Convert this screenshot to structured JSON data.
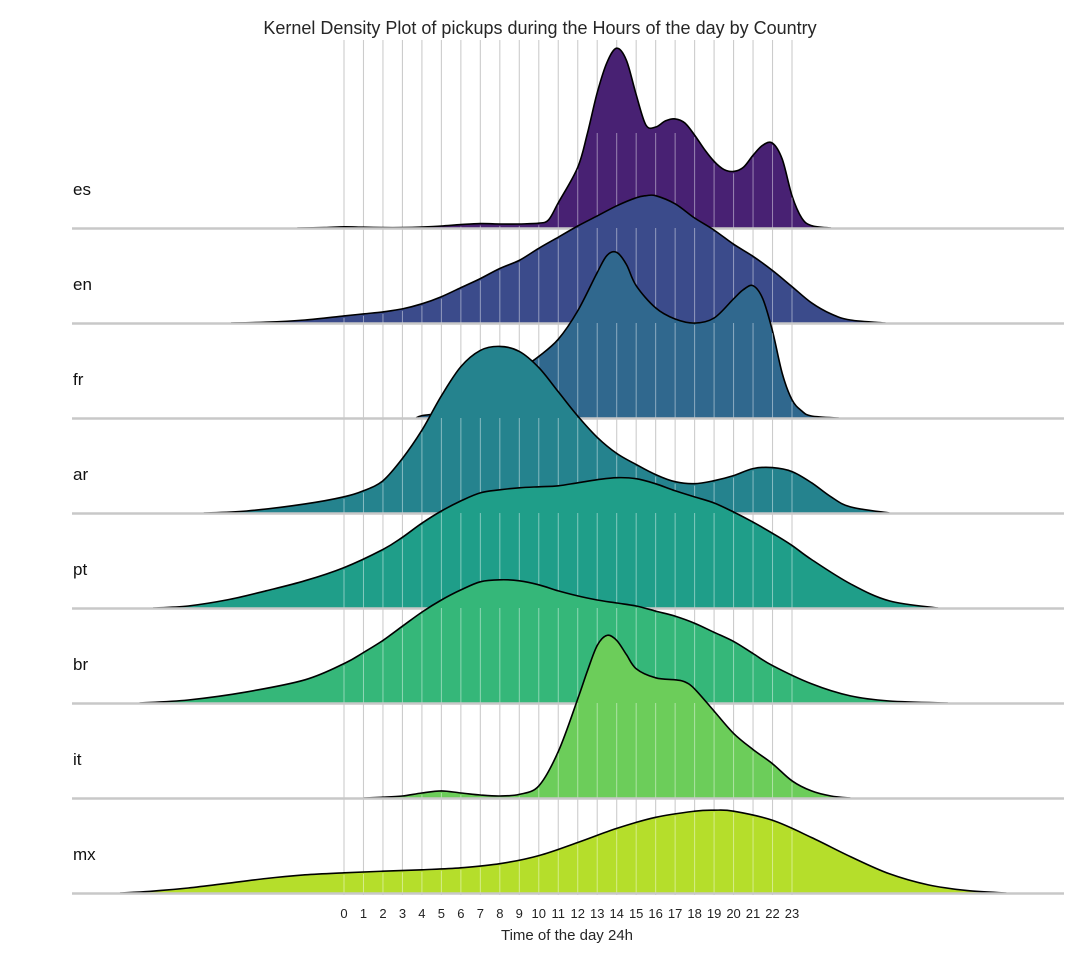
{
  "chart_data": {
    "type": "area",
    "title": "Kernel Density Plot of pickups during the Hours of the day by Country",
    "xlabel": "Time of the day 24h",
    "ylabel": "",
    "xlim": [
      -14,
      37
    ],
    "x_ticks": [
      "0",
      "1",
      "2",
      "3",
      "4",
      "5",
      "6",
      "7",
      "8",
      "9",
      "10",
      "11",
      "12",
      "13",
      "14",
      "15",
      "16",
      "17",
      "18",
      "19",
      "20",
      "21",
      "22",
      "23"
    ],
    "grid": "vertical lines at each hour",
    "legend": "none (row labels at left)",
    "series": [
      {
        "name": "es",
        "color": "#482173",
        "points": [
          [
            -2.4,
            0
          ],
          [
            -1,
            0.02
          ],
          [
            0,
            0.06
          ],
          [
            1,
            0.04
          ],
          [
            2,
            0.02
          ],
          [
            3,
            0.02
          ],
          [
            4,
            0.05
          ],
          [
            5,
            0.1
          ],
          [
            6,
            0.17
          ],
          [
            7,
            0.22
          ],
          [
            8,
            0.2
          ],
          [
            9,
            0.2
          ],
          [
            10,
            0.24
          ],
          [
            10.5,
            0.4
          ],
          [
            11,
            1.25
          ],
          [
            12,
            3.0
          ],
          [
            12.5,
            4.7
          ],
          [
            13,
            6.7
          ],
          [
            13.5,
            8.2
          ],
          [
            14,
            8.9
          ],
          [
            14.5,
            8.3
          ],
          [
            15,
            6.6
          ],
          [
            15.5,
            5.1
          ],
          [
            16,
            5.0
          ],
          [
            16.5,
            5.3
          ],
          [
            17,
            5.4
          ],
          [
            17.5,
            5.2
          ],
          [
            18,
            4.6
          ],
          [
            18.5,
            3.9
          ],
          [
            19,
            3.3
          ],
          [
            19.5,
            2.9
          ],
          [
            20,
            2.8
          ],
          [
            20.5,
            3.0
          ],
          [
            21,
            3.6
          ],
          [
            21.5,
            4.1
          ],
          [
            22,
            4.2
          ],
          [
            22.5,
            3.4
          ],
          [
            23,
            1.6
          ],
          [
            23.5,
            0.5
          ],
          [
            24,
            0.12
          ],
          [
            25,
            0
          ]
        ]
      },
      {
        "name": "en",
        "color": "#3b4b8b",
        "points": [
          [
            -5.8,
            0
          ],
          [
            -4,
            0.04
          ],
          [
            -2,
            0.15
          ],
          [
            0,
            0.35
          ],
          [
            1,
            0.45
          ],
          [
            2,
            0.55
          ],
          [
            3,
            0.7
          ],
          [
            4,
            0.95
          ],
          [
            5,
            1.3
          ],
          [
            6,
            1.75
          ],
          [
            7,
            2.2
          ],
          [
            8,
            2.7
          ],
          [
            9,
            3.1
          ],
          [
            10,
            3.7
          ],
          [
            11,
            4.25
          ],
          [
            12,
            4.8
          ],
          [
            13,
            5.3
          ],
          [
            14,
            5.8
          ],
          [
            15,
            6.2
          ],
          [
            15.5,
            6.3
          ],
          [
            16,
            6.3
          ],
          [
            17,
            5.9
          ],
          [
            18,
            5.2
          ],
          [
            19,
            4.6
          ],
          [
            20,
            3.9
          ],
          [
            21,
            3.3
          ],
          [
            22,
            2.6
          ],
          [
            23,
            1.8
          ],
          [
            24,
            1.0
          ],
          [
            25,
            0.45
          ],
          [
            26,
            0.15
          ],
          [
            27.8,
            0
          ]
        ]
      },
      {
        "name": "fr",
        "color": "#30688e",
        "points": [
          [
            3.7,
            0
          ],
          [
            4,
            0.12
          ],
          [
            5,
            0.24
          ],
          [
            6,
            0.45
          ],
          [
            7,
            0.9
          ],
          [
            8,
            1.55
          ],
          [
            9,
            2.35
          ],
          [
            10,
            3.05
          ],
          [
            11,
            3.9
          ],
          [
            12,
            5.3
          ],
          [
            13,
            7.2
          ],
          [
            13.5,
            8.05
          ],
          [
            14,
            8.2
          ],
          [
            14.5,
            7.6
          ],
          [
            15,
            6.55
          ],
          [
            16,
            5.45
          ],
          [
            17,
            4.9
          ],
          [
            18,
            4.7
          ],
          [
            19,
            4.95
          ],
          [
            20,
            5.9
          ],
          [
            20.5,
            6.35
          ],
          [
            21,
            6.55
          ],
          [
            21.5,
            5.9
          ],
          [
            22,
            4.3
          ],
          [
            22.5,
            2.2
          ],
          [
            23,
            0.9
          ],
          [
            23.5,
            0.35
          ],
          [
            24,
            0.1
          ],
          [
            25.4,
            0
          ]
        ]
      },
      {
        "name": "ar",
        "color": "#25838e",
        "points": [
          [
            -7.2,
            0
          ],
          [
            -5,
            0.1
          ],
          [
            -2,
            0.45
          ],
          [
            0,
            0.8
          ],
          [
            1,
            1.1
          ],
          [
            2,
            1.6
          ],
          [
            3,
            2.7
          ],
          [
            4,
            4.1
          ],
          [
            5,
            5.8
          ],
          [
            6,
            7.25
          ],
          [
            7,
            8.05
          ],
          [
            8,
            8.25
          ],
          [
            9,
            8.0
          ],
          [
            10,
            7.2
          ],
          [
            11,
            6.0
          ],
          [
            12,
            4.8
          ],
          [
            13,
            3.75
          ],
          [
            14,
            2.95
          ],
          [
            15,
            2.4
          ],
          [
            16,
            1.9
          ],
          [
            17,
            1.55
          ],
          [
            18,
            1.45
          ],
          [
            19,
            1.6
          ],
          [
            20,
            1.85
          ],
          [
            21,
            2.2
          ],
          [
            22,
            2.25
          ],
          [
            23,
            2.05
          ],
          [
            24,
            1.5
          ],
          [
            25,
            0.8
          ],
          [
            26,
            0.3
          ],
          [
            28,
            0
          ]
        ]
      },
      {
        "name": "pt",
        "color": "#1f9e89",
        "points": [
          [
            -9.8,
            0
          ],
          [
            -8,
            0.1
          ],
          [
            -6,
            0.4
          ],
          [
            -4,
            0.85
          ],
          [
            -2,
            1.35
          ],
          [
            0,
            2.0
          ],
          [
            2,
            2.9
          ],
          [
            3,
            3.5
          ],
          [
            4,
            4.2
          ],
          [
            5,
            4.8
          ],
          [
            6,
            5.3
          ],
          [
            7,
            5.7
          ],
          [
            8,
            5.85
          ],
          [
            9,
            5.95
          ],
          [
            10,
            6.0
          ],
          [
            11,
            6.05
          ],
          [
            12,
            6.2
          ],
          [
            13,
            6.35
          ],
          [
            14,
            6.45
          ],
          [
            15,
            6.4
          ],
          [
            16,
            6.15
          ],
          [
            17,
            5.8
          ],
          [
            18,
            5.5
          ],
          [
            19,
            5.2
          ],
          [
            20,
            4.75
          ],
          [
            21,
            4.25
          ],
          [
            22,
            3.7
          ],
          [
            23,
            3.1
          ],
          [
            24,
            2.4
          ],
          [
            26,
            1.2
          ],
          [
            28,
            0.35
          ],
          [
            30.5,
            0
          ]
        ]
      },
      {
        "name": "br",
        "color": "#35b779",
        "points": [
          [
            -10.5,
            0
          ],
          [
            -8,
            0.15
          ],
          [
            -5,
            0.55
          ],
          [
            -2,
            1.15
          ],
          [
            0,
            1.95
          ],
          [
            1,
            2.5
          ],
          [
            2,
            3.1
          ],
          [
            3,
            3.8
          ],
          [
            4,
            4.5
          ],
          [
            5,
            5.1
          ],
          [
            6,
            5.6
          ],
          [
            7,
            6.0
          ],
          [
            8,
            6.1
          ],
          [
            9,
            6.05
          ],
          [
            10,
            5.85
          ],
          [
            11,
            5.55
          ],
          [
            12,
            5.3
          ],
          [
            13,
            5.1
          ],
          [
            14,
            4.95
          ],
          [
            15,
            4.8
          ],
          [
            16,
            4.55
          ],
          [
            17,
            4.3
          ],
          [
            18,
            3.95
          ],
          [
            19,
            3.5
          ],
          [
            20,
            3.05
          ],
          [
            21,
            2.45
          ],
          [
            22,
            1.85
          ],
          [
            24,
            0.95
          ],
          [
            26,
            0.35
          ],
          [
            28,
            0.1
          ],
          [
            31,
            0
          ]
        ]
      },
      {
        "name": "it",
        "color": "#6ccd5a",
        "points": [
          [
            1,
            0
          ],
          [
            2,
            0.04
          ],
          [
            3,
            0.1
          ],
          [
            4,
            0.25
          ],
          [
            5,
            0.35
          ],
          [
            6,
            0.25
          ],
          [
            7,
            0.15
          ],
          [
            8,
            0.1
          ],
          [
            9,
            0.18
          ],
          [
            10,
            0.6
          ],
          [
            11,
            2.3
          ],
          [
            12,
            4.9
          ],
          [
            12.5,
            6.3
          ],
          [
            13,
            7.55
          ],
          [
            13.5,
            8.05
          ],
          [
            14,
            7.8
          ],
          [
            14.5,
            7.1
          ],
          [
            15,
            6.4
          ],
          [
            16,
            5.95
          ],
          [
            17,
            5.85
          ],
          [
            17.5,
            5.75
          ],
          [
            18,
            5.4
          ],
          [
            19,
            4.3
          ],
          [
            20,
            3.2
          ],
          [
            21,
            2.4
          ],
          [
            22,
            1.7
          ],
          [
            23,
            0.85
          ],
          [
            24,
            0.35
          ],
          [
            25,
            0.1
          ],
          [
            26,
            0
          ]
        ]
      },
      {
        "name": "mx",
        "color": "#b5de2b",
        "points": [
          [
            -11.5,
            0
          ],
          [
            -10,
            0.08
          ],
          [
            -8,
            0.25
          ],
          [
            -6,
            0.48
          ],
          [
            -4,
            0.72
          ],
          [
            -2,
            0.9
          ],
          [
            0,
            1.0
          ],
          [
            2,
            1.08
          ],
          [
            4,
            1.15
          ],
          [
            6,
            1.25
          ],
          [
            8,
            1.45
          ],
          [
            10,
            1.85
          ],
          [
            12,
            2.5
          ],
          [
            14,
            3.2
          ],
          [
            16,
            3.75
          ],
          [
            18,
            4.05
          ],
          [
            19,
            4.1
          ],
          [
            20,
            4.05
          ],
          [
            22,
            3.6
          ],
          [
            24,
            2.75
          ],
          [
            26,
            1.8
          ],
          [
            28,
            0.95
          ],
          [
            30,
            0.4
          ],
          [
            32,
            0.12
          ],
          [
            34,
            0
          ]
        ]
      }
    ]
  }
}
